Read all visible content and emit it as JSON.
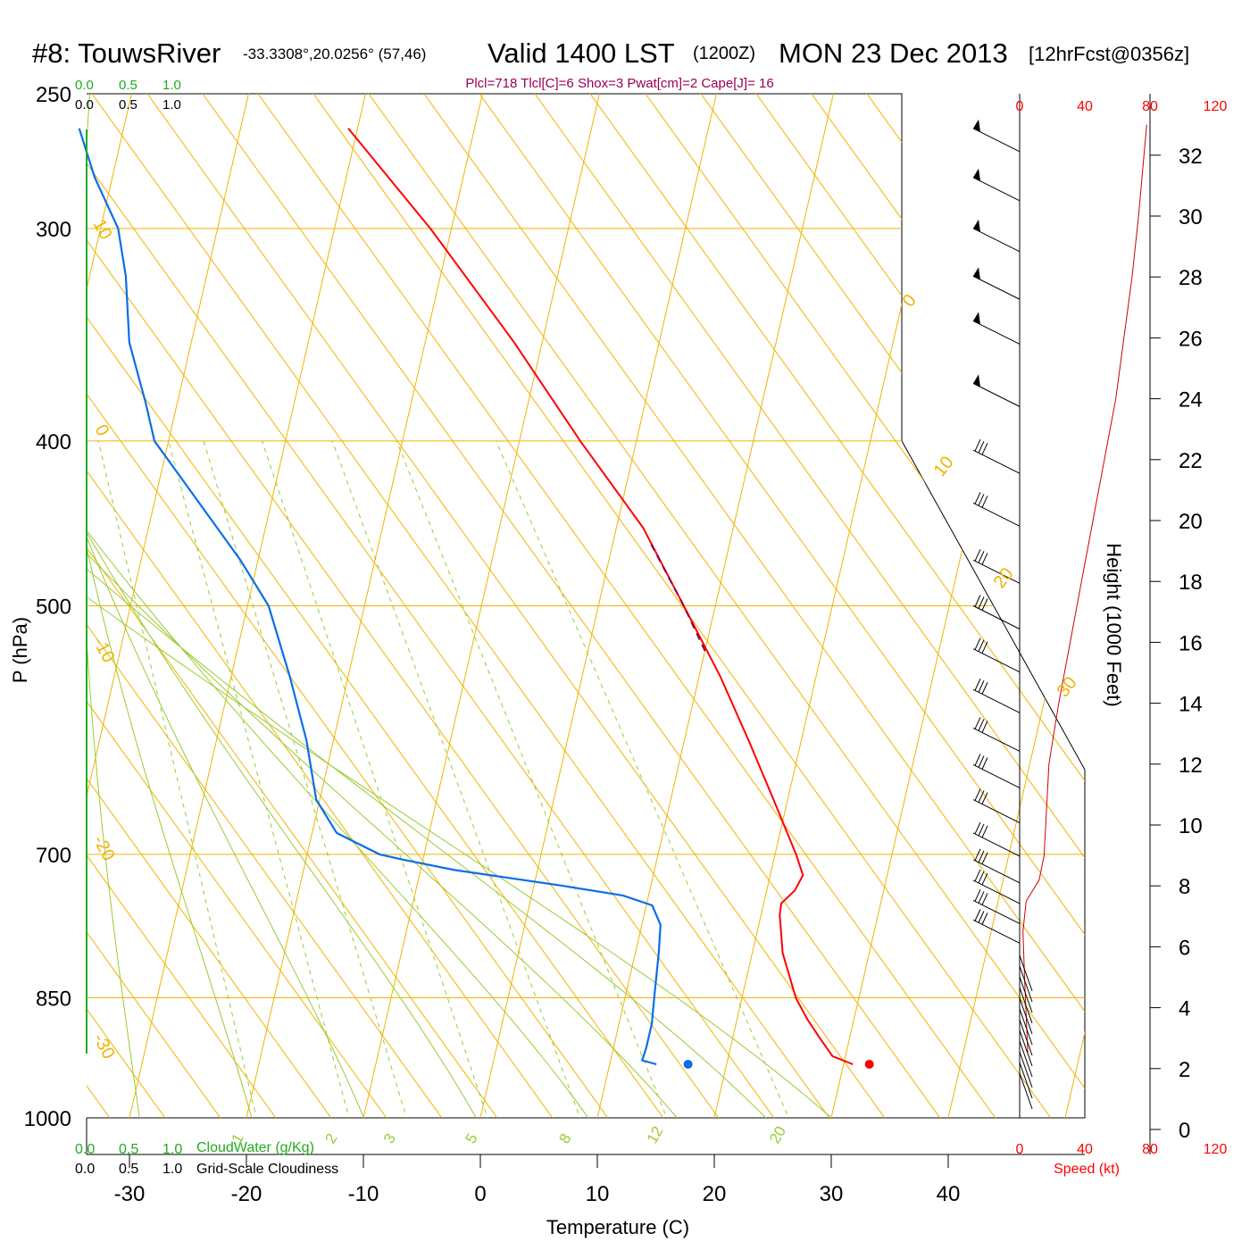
{
  "header": {
    "station": "#8: TouwsRiver",
    "coords": "-33.3308°,20.0256° (57,46)",
    "valid": "Valid 1400 LST",
    "zulu": "(1200Z)",
    "date": "MON 23 Dec 2013",
    "forecast": "[12hrFcst@0356z]",
    "indices": "Plcl=718 Tlcl[C]=6 Shox=3 Pwat[cm]=2 Cape[J]= 16"
  },
  "colors": {
    "temperature": "#ff0000",
    "dewpoint": "#0a6ee6",
    "isotherm": "#f0b400",
    "moist_adiabat": "#99cc33",
    "cloud_green": "#22aa22",
    "title_index": "#990055"
  },
  "chart_data": {
    "type": "skew-t log-p sounding",
    "xlabel": "Temperature (C)",
    "ylabel": "P (hPa)",
    "right_axis_label": "Height (1000 Feet)",
    "x_ticks": [
      "-30",
      "-20",
      "-10",
      "0",
      "10",
      "20",
      "30",
      "40"
    ],
    "p_ticks": [
      {
        "p": 250,
        "label": "250"
      },
      {
        "p": 300,
        "label": "300"
      },
      {
        "p": 400,
        "label": "400"
      },
      {
        "p": 500,
        "label": "500"
      },
      {
        "p": 700,
        "label": "700"
      },
      {
        "p": 850,
        "label": "850"
      },
      {
        "p": 1000,
        "label": "1000"
      }
    ],
    "height_ticks": [
      "0",
      "2",
      "4",
      "6",
      "8",
      "10",
      "12",
      "14",
      "16",
      "18",
      "20",
      "22",
      "24",
      "26",
      "28",
      "30",
      "32"
    ],
    "isotherm_labels": [
      "10",
      "0",
      "-10",
      "-20",
      "-30",
      "0",
      "10",
      "20",
      "30"
    ],
    "mixing_ratio_labels": [
      "1",
      "2",
      "3",
      "5",
      "8",
      "12",
      "20"
    ],
    "temperature_profile": [
      {
        "p": 930,
        "t": 30.8
      },
      {
        "p": 920,
        "t": 28.9
      },
      {
        "p": 900,
        "t": 27.6
      },
      {
        "p": 875,
        "t": 26.0
      },
      {
        "p": 850,
        "t": 24.6
      },
      {
        "p": 800,
        "t": 22.6
      },
      {
        "p": 760,
        "t": 21.6
      },
      {
        "p": 748,
        "t": 21.5
      },
      {
        "p": 735,
        "t": 22.4
      },
      {
        "p": 720,
        "t": 22.8
      },
      {
        "p": 700,
        "t": 21.8
      },
      {
        "p": 650,
        "t": 18.8
      },
      {
        "p": 600,
        "t": 15.5
      },
      {
        "p": 550,
        "t": 11.8
      },
      {
        "p": 500,
        "t": 7.3
      },
      {
        "p": 450,
        "t": 2.3
      },
      {
        "p": 400,
        "t": -4.8
      },
      {
        "p": 350,
        "t": -12.4
      },
      {
        "p": 300,
        "t": -21.8
      },
      {
        "p": 262,
        "t": -30.8
      }
    ],
    "parcel_profile": [
      {
        "p": 460,
        "t": 3.3
      },
      {
        "p": 500,
        "t": 7.3
      },
      {
        "p": 535,
        "t": 10.3
      }
    ],
    "dewpoint_profile": [
      {
        "p": 930,
        "t": 14.0
      },
      {
        "p": 925,
        "t": 12.7
      },
      {
        "p": 910,
        "t": 12.8
      },
      {
        "p": 880,
        "t": 12.8
      },
      {
        "p": 850,
        "t": 12.5
      },
      {
        "p": 800,
        "t": 12.0
      },
      {
        "p": 770,
        "t": 11.6
      },
      {
        "p": 750,
        "t": 10.5
      },
      {
        "p": 740,
        "t": 7.8
      },
      {
        "p": 730,
        "t": 2.2
      },
      {
        "p": 715,
        "t": -7.1
      },
      {
        "p": 705,
        "t": -11.7
      },
      {
        "p": 700,
        "t": -13.8
      },
      {
        "p": 680,
        "t": -17.9
      },
      {
        "p": 650,
        "t": -20.3
      },
      {
        "p": 600,
        "t": -22.3
      },
      {
        "p": 550,
        "t": -25.0
      },
      {
        "p": 500,
        "t": -28.2
      },
      {
        "p": 470,
        "t": -31.5
      },
      {
        "p": 400,
        "t": -41.2
      },
      {
        "p": 380,
        "t": -42.7
      },
      {
        "p": 350,
        "t": -45.3
      },
      {
        "p": 320,
        "t": -46.9
      },
      {
        "p": 300,
        "t": -48.5
      },
      {
        "p": 280,
        "t": -51.5
      },
      {
        "p": 262,
        "t": -53.8
      }
    ],
    "surface_markers": [
      {
        "label": "temperature",
        "p": 930,
        "t": 32.2
      },
      {
        "label": "dewpoint",
        "p": 930,
        "t": 16.7
      }
    ],
    "wind_speed_axis": {
      "label": "Speed (kt)",
      "ticks": [
        "0",
        "40",
        "80",
        "120"
      ]
    },
    "wind_speed_profile": [
      {
        "h": 2.5,
        "s": 5
      },
      {
        "h": 5,
        "s": 3
      },
      {
        "h": 6.5,
        "s": 2
      },
      {
        "h": 7.5,
        "s": 4
      },
      {
        "h": 8.2,
        "s": 12
      },
      {
        "h": 9,
        "s": 15
      },
      {
        "h": 10,
        "s": 16
      },
      {
        "h": 11,
        "s": 17
      },
      {
        "h": 12,
        "s": 18
      },
      {
        "h": 14,
        "s": 24
      },
      {
        "h": 16,
        "s": 31
      },
      {
        "h": 18,
        "s": 38
      },
      {
        "h": 20,
        "s": 45
      },
      {
        "h": 22,
        "s": 52
      },
      {
        "h": 24,
        "s": 59
      },
      {
        "h": 26,
        "s": 64
      },
      {
        "h": 28,
        "s": 69
      },
      {
        "h": 30,
        "s": 73
      },
      {
        "h": 33,
        "s": 78
      }
    ],
    "wind_barbs": [
      {
        "p": 262,
        "flags": 1
      },
      {
        "p": 280,
        "flags": 1
      },
      {
        "p": 300,
        "flags": 1
      },
      {
        "p": 320,
        "flags": 1
      },
      {
        "p": 340,
        "flags": 1
      },
      {
        "p": 370,
        "flags": 1
      },
      {
        "p": 405,
        "flags": 0
      },
      {
        "p": 435,
        "flags": 0
      },
      {
        "p": 470,
        "flags": 0
      },
      {
        "p": 500,
        "flags": 0
      },
      {
        "p": 530,
        "flags": 0
      },
      {
        "p": 560,
        "flags": 0
      },
      {
        "p": 590,
        "flags": 0
      },
      {
        "p": 620,
        "flags": 0
      },
      {
        "p": 650,
        "flags": 0
      },
      {
        "p": 680,
        "flags": 0
      },
      {
        "p": 705,
        "flags": 0
      },
      {
        "p": 725,
        "flags": 0
      },
      {
        "p": 745,
        "flags": 0
      },
      {
        "p": 765,
        "flags": 0
      }
    ],
    "cloud_axes": {
      "cloud_water_label": "CloudWater (g/Kg)",
      "cloudiness_label": "Grid-Scale Cloudiness",
      "ticks": [
        "0.0",
        "0.5",
        "1.0"
      ]
    }
  }
}
